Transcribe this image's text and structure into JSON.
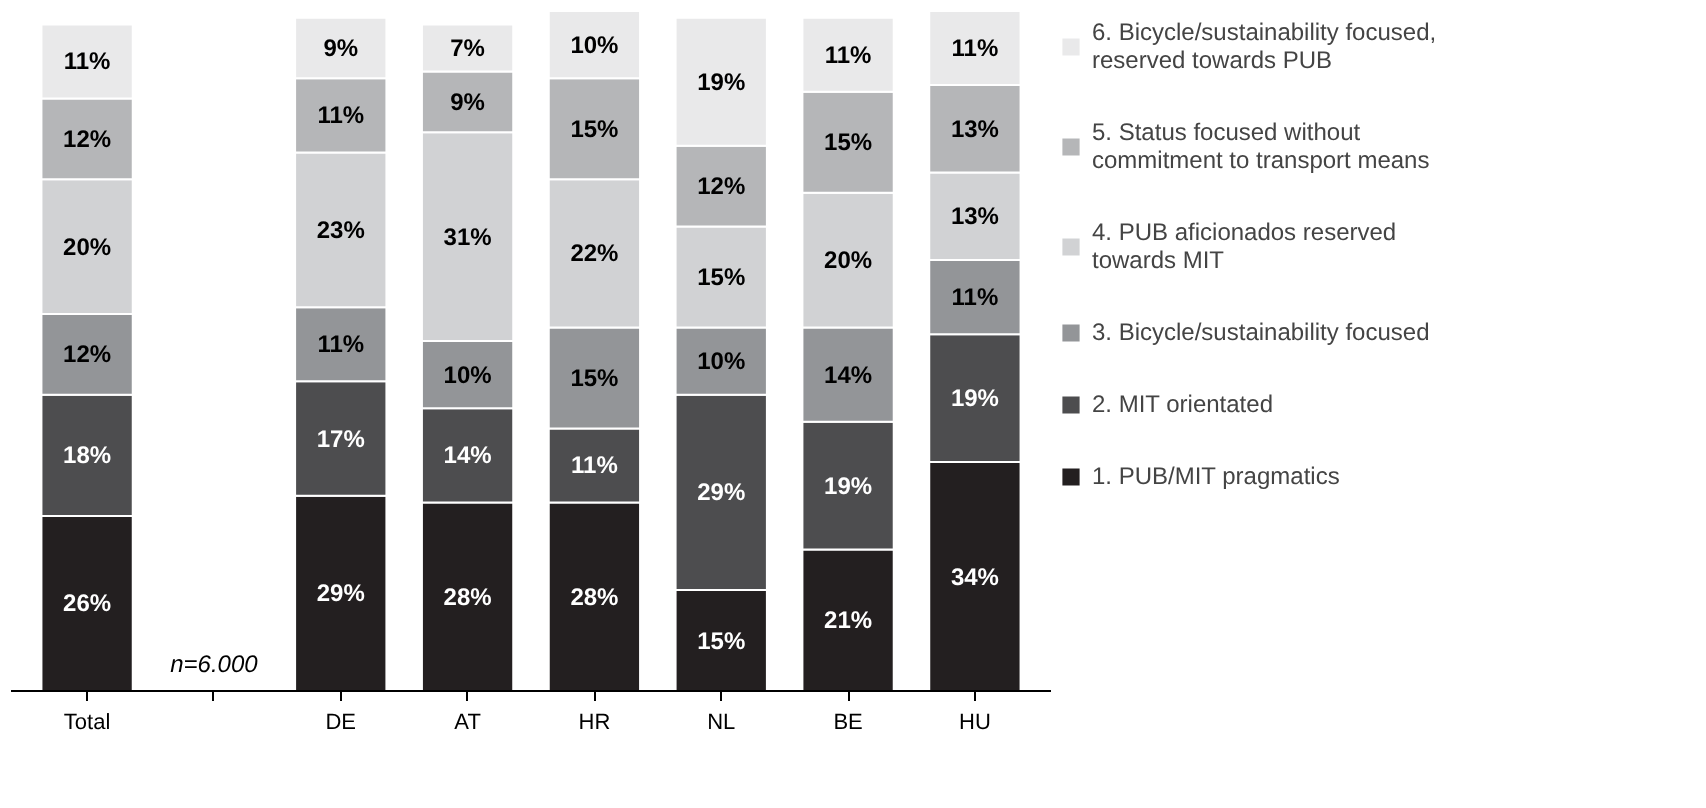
{
  "chart_data": {
    "type": "bar",
    "stacked": true,
    "legend": "right",
    "grid": false,
    "tick_labels": "x",
    "categories": [
      "Total",
      null,
      "DE",
      "AT",
      "HR",
      "NL",
      "BE",
      "HU"
    ],
    "annotations": [
      "n=6.000"
    ],
    "series": [
      {
        "name": "1. PUB/MIT pragmatics",
        "color": "#231f20",
        "values": [
          26,
          null,
          29,
          28,
          28,
          15,
          21,
          34
        ],
        "value_labels": [
          "26%",
          null,
          "29%",
          "28%",
          "28%",
          "15%",
          "21%",
          "34%"
        ]
      },
      {
        "name": "2. MIT orientated",
        "color": "#4d4d4f",
        "values": [
          18,
          null,
          17,
          14,
          11,
          29,
          19,
          19
        ],
        "value_labels": [
          "18%",
          null,
          "17%",
          "14%",
          "11%",
          "29%",
          "19%",
          "19%"
        ]
      },
      {
        "name": "3. Bicycle/sustainability focused",
        "color": "#939598",
        "values": [
          12,
          null,
          11,
          10,
          15,
          10,
          14,
          11
        ],
        "value_labels": [
          "12%",
          null,
          "11%",
          "10%",
          "15%",
          "10%",
          "14%",
          "11%"
        ]
      },
      {
        "name": "4. PUB aficionados reserved towards MIT",
        "color": "#d1d2d4",
        "values": [
          20,
          null,
          23,
          31,
          22,
          15,
          20,
          13
        ],
        "value_labels": [
          "20%",
          null,
          "23%",
          "31%",
          "22%",
          "15%",
          "20%",
          "13%"
        ]
      },
      {
        "name": "5. Status focused without commitment to transport means",
        "color": "#b5b6b8",
        "values": [
          12,
          null,
          11,
          9,
          15,
          12,
          15,
          13
        ],
        "value_labels": [
          "12%",
          null,
          "11%",
          "9%",
          "15%",
          "12%",
          "15%",
          "13%"
        ]
      },
      {
        "name": "6. Bicycle/sustainability focused, reserved towards PUB",
        "color": "#e9e9ea",
        "values": [
          11,
          null,
          9,
          7,
          10,
          19,
          11,
          11
        ],
        "value_labels": [
          "11%",
          null,
          "9%",
          "7%",
          "10%",
          "19%",
          "11%",
          "11%"
        ]
      }
    ]
  }
}
